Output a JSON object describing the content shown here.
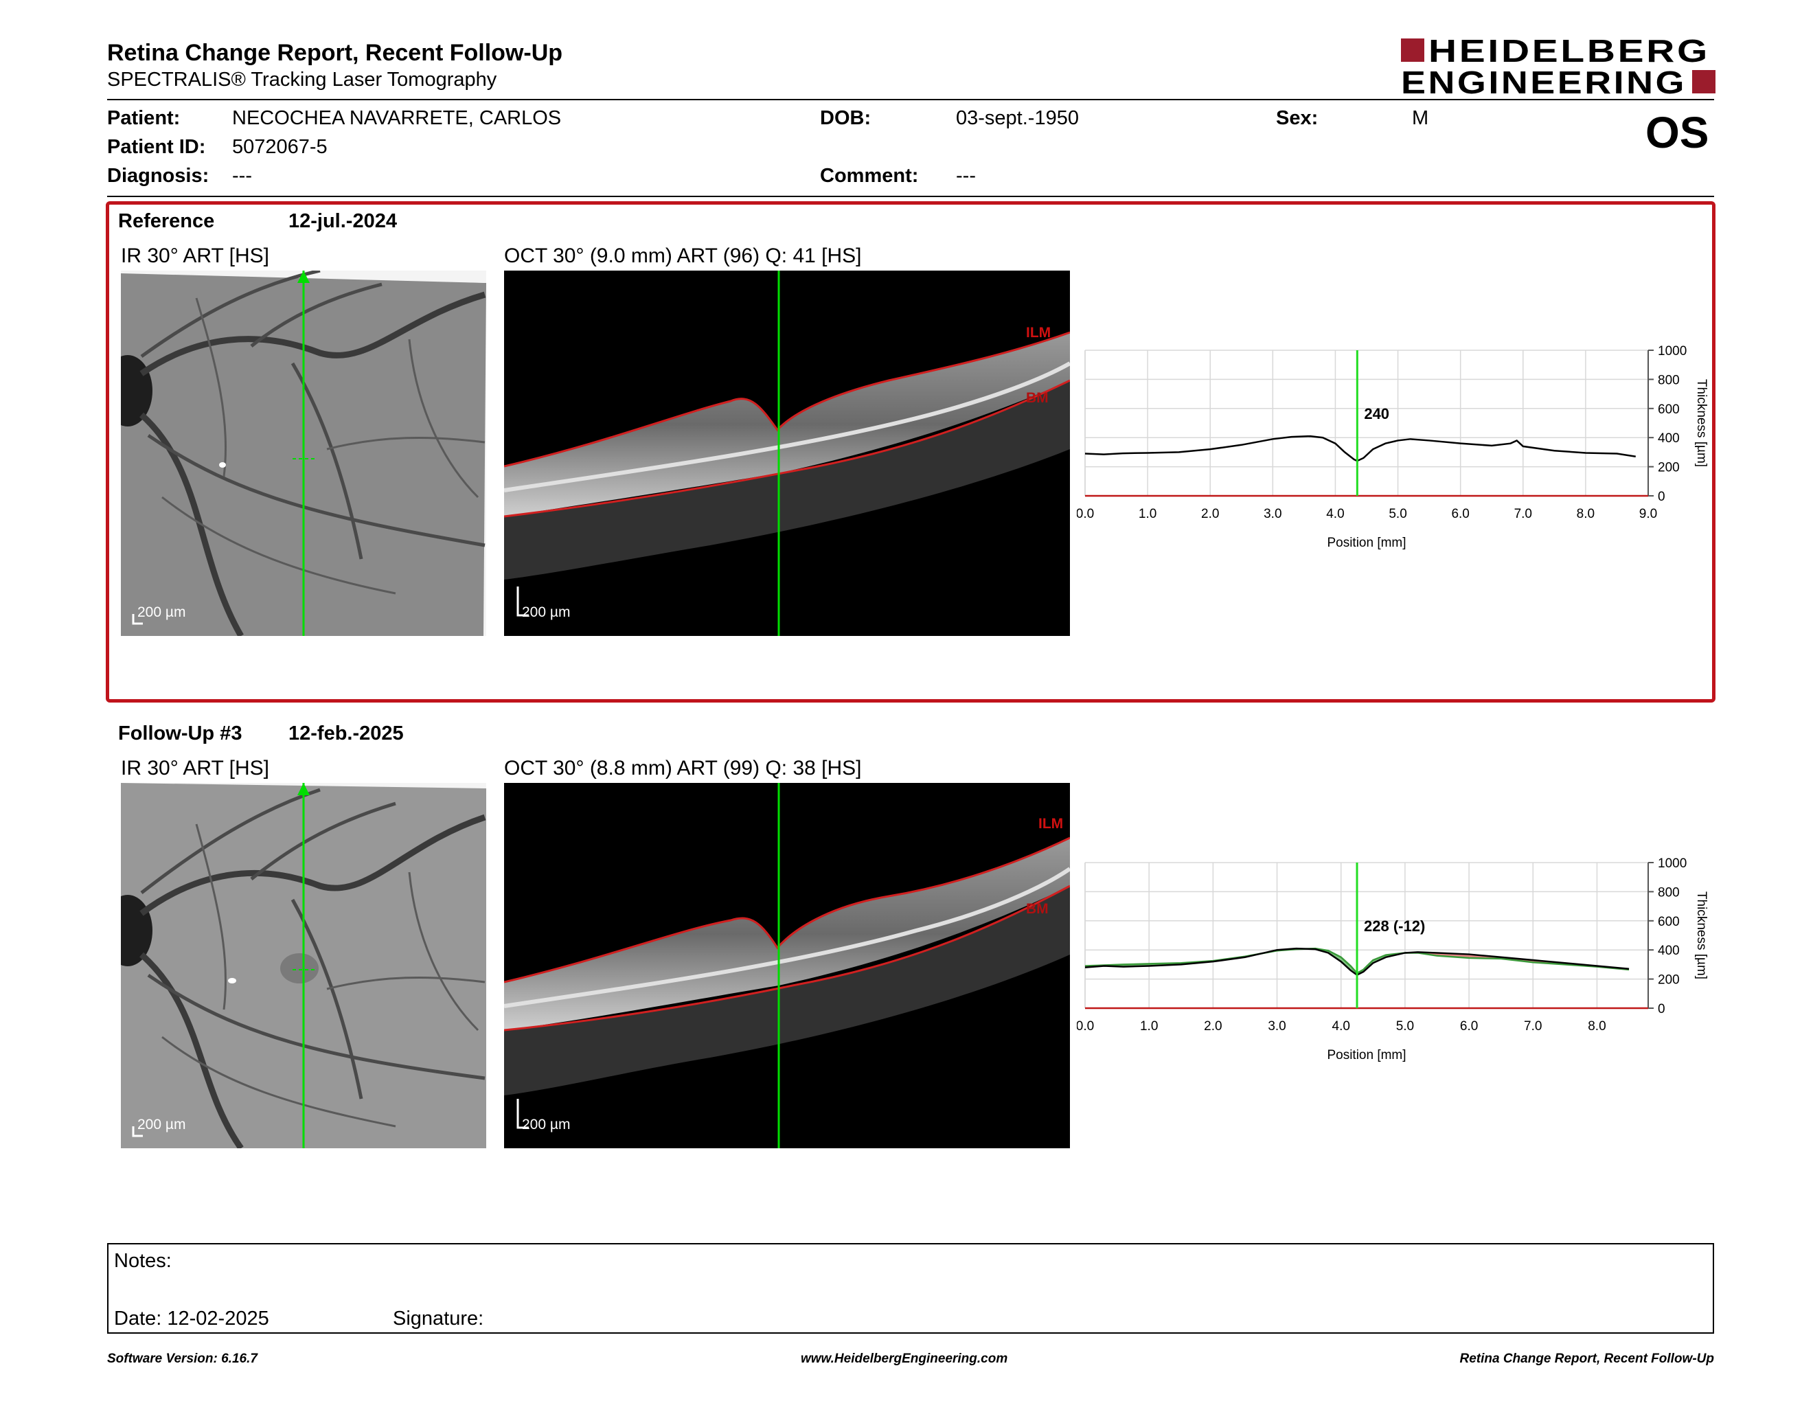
{
  "header": {
    "title": "Retina Change Report, Recent Follow-Up",
    "subtitle": "SPECTRALIS® Tracking Laser Tomography",
    "logo_line1": "HEIDELBERG",
    "logo_line2": "ENGINEERING",
    "logo_color": "#9b1c2c"
  },
  "patient": {
    "patient_label": "Patient:",
    "patient_value": "NECOCHEA NAVARRETE, CARLOS",
    "id_label": "Patient ID:",
    "id_value": "5072067-5",
    "diagnosis_label": "Diagnosis:",
    "diagnosis_value": "---",
    "dob_label": "DOB:",
    "dob_value": "03-sept.-1950",
    "comment_label": "Comment:",
    "comment_value": "---",
    "sex_label": "Sex:",
    "sex_value": "M",
    "eye": "OS"
  },
  "reference": {
    "label": "Reference",
    "date": "12-jul.-2024",
    "ir_caption": "IR 30° ART [HS]",
    "oct_caption": "OCT 30° (9.0 mm) ART (96) Q: 41 [HS]",
    "scale_ir": "200 µm",
    "scale_oct": "200 µm",
    "ilm_label": "ILM",
    "bm_label": "BM",
    "thickness_readout": "240"
  },
  "followup": {
    "label": "Follow-Up #3",
    "date": "12-feb.-2025",
    "ir_caption": "IR 30° ART [HS]",
    "oct_caption": "OCT 30° (8.8 mm) ART (99) Q: 38 [HS]",
    "scale_ir": "200 µm",
    "scale_oct": "200 µm",
    "ilm_label": "ILM",
    "bm_label": "BM",
    "thickness_readout": "228 (-12)"
  },
  "chart_data": [
    {
      "type": "line",
      "xlabel": "Position [mm]",
      "ylabel": "Thickness [µm]",
      "xlim": [
        0,
        9.0
      ],
      "ylim": [
        0,
        1000
      ],
      "xticks": [
        "0.0",
        "1.0",
        "2.0",
        "3.0",
        "4.0",
        "5.0",
        "6.0",
        "7.0",
        "8.0",
        "9.0"
      ],
      "yticks": [
        "0",
        "200",
        "400",
        "600",
        "800",
        "1000"
      ],
      "grid": true,
      "marker_x": 4.35,
      "marker_label": "240",
      "series": [
        {
          "color": "#000000",
          "x": [
            0.0,
            0.3,
            0.6,
            1.0,
            1.5,
            2.0,
            2.5,
            3.0,
            3.3,
            3.6,
            3.8,
            4.0,
            4.15,
            4.3,
            4.35,
            4.45,
            4.6,
            4.8,
            5.0,
            5.2,
            5.5,
            6.0,
            6.5,
            6.8,
            6.9,
            7.0,
            7.5,
            8.0,
            8.5,
            8.8
          ],
          "y": [
            290,
            285,
            292,
            295,
            300,
            320,
            350,
            390,
            405,
            410,
            400,
            360,
            300,
            250,
            240,
            260,
            320,
            360,
            380,
            390,
            380,
            360,
            345,
            360,
            380,
            340,
            310,
            295,
            290,
            270
          ]
        }
      ]
    },
    {
      "type": "line",
      "xlabel": "Position [mm]",
      "ylabel": "Thickness [µm]",
      "xlim": [
        0,
        8.8
      ],
      "ylim": [
        0,
        1000
      ],
      "xticks": [
        "0.0",
        "1.0",
        "2.0",
        "3.0",
        "4.0",
        "5.0",
        "6.0",
        "7.0",
        "8.0"
      ],
      "yticks": [
        "0",
        "200",
        "400",
        "600",
        "800",
        "1000"
      ],
      "grid": true,
      "marker_x": 4.25,
      "marker_label": "228 (-12)",
      "series": [
        {
          "color": "#000000",
          "x": [
            0.0,
            0.3,
            0.6,
            1.0,
            1.5,
            2.0,
            2.5,
            3.0,
            3.3,
            3.6,
            3.8,
            4.0,
            4.15,
            4.25,
            4.35,
            4.5,
            4.7,
            5.0,
            5.2,
            5.5,
            6.0,
            6.5,
            7.0,
            7.5,
            8.0,
            8.5
          ],
          "y": [
            280,
            290,
            285,
            290,
            300,
            320,
            350,
            400,
            410,
            405,
            380,
            320,
            260,
            228,
            250,
            310,
            350,
            380,
            385,
            380,
            370,
            350,
            330,
            310,
            290,
            270
          ]
        },
        {
          "color": "#3a9a3a",
          "x": [
            0.0,
            0.3,
            0.6,
            1.0,
            1.5,
            2.0,
            2.5,
            3.0,
            3.3,
            3.6,
            3.8,
            4.0,
            4.15,
            4.25,
            4.35,
            4.5,
            4.7,
            5.0,
            5.2,
            5.5,
            6.0,
            6.5,
            7.0,
            7.5,
            8.0,
            8.5
          ],
          "y": [
            290,
            295,
            300,
            305,
            310,
            325,
            355,
            395,
            405,
            410,
            395,
            350,
            290,
            240,
            265,
            330,
            365,
            380,
            380,
            360,
            345,
            340,
            315,
            300,
            285,
            265
          ]
        }
      ]
    }
  ],
  "notes": {
    "notes_label": "Notes:",
    "date_label": "Date: 12-02-2025",
    "signature_label": "Signature:"
  },
  "footer": {
    "left": "Software Version: 6.16.7",
    "center": "www.HeidelbergEngineering.com",
    "right": "Retina Change Report, Recent Follow-Up"
  }
}
